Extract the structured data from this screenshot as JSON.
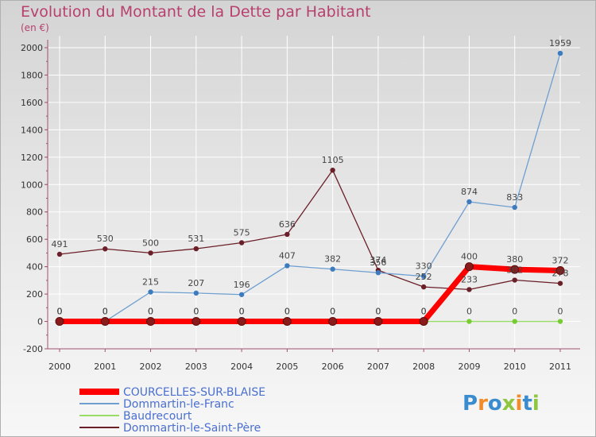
{
  "title": "Evolution du Montant de la Dette par Habitant",
  "subtitle": "(en €)",
  "brand": "Proxiti",
  "chart_data": {
    "type": "line",
    "title": "Evolution du Montant de la Dette par Habitant",
    "ylabel": "(en €)",
    "xlabel": "",
    "categories": [
      "2000",
      "2001",
      "2002",
      "2003",
      "2004",
      "2005",
      "2006",
      "2007",
      "2008",
      "2009",
      "2010",
      "2011"
    ],
    "ylim": [
      -200,
      2000
    ],
    "yticks": [
      -200,
      0,
      200,
      400,
      600,
      800,
      1000,
      1200,
      1400,
      1600,
      1800,
      2000
    ],
    "series": [
      {
        "name": "COURCELLES-SUR-BLAISE",
        "color": "#ff0000",
        "marker": "#8b1a1a",
        "values": [
          0,
          0,
          0,
          0,
          0,
          0,
          0,
          0,
          0,
          400,
          380,
          372
        ]
      },
      {
        "name": "Dommartin-le-Franc",
        "color": "#6f9fd0",
        "marker": "#3d7bbf",
        "values": [
          0,
          0,
          215,
          207,
          196,
          407,
          382,
          356,
          330,
          874,
          833,
          1959
        ]
      },
      {
        "name": "Baudrecourt",
        "color": "#99dd66",
        "marker": "#77cc33",
        "values": [
          0,
          0,
          0,
          0,
          0,
          0,
          0,
          0,
          0,
          0,
          0,
          0
        ]
      },
      {
        "name": "Dommartin-le-Saint-Père",
        "color": "#6b1f28",
        "marker": "#6b1f28",
        "values": [
          491,
          530,
          500,
          531,
          575,
          636,
          1105,
          374,
          252,
          233,
          302,
          278
        ]
      }
    ]
  }
}
